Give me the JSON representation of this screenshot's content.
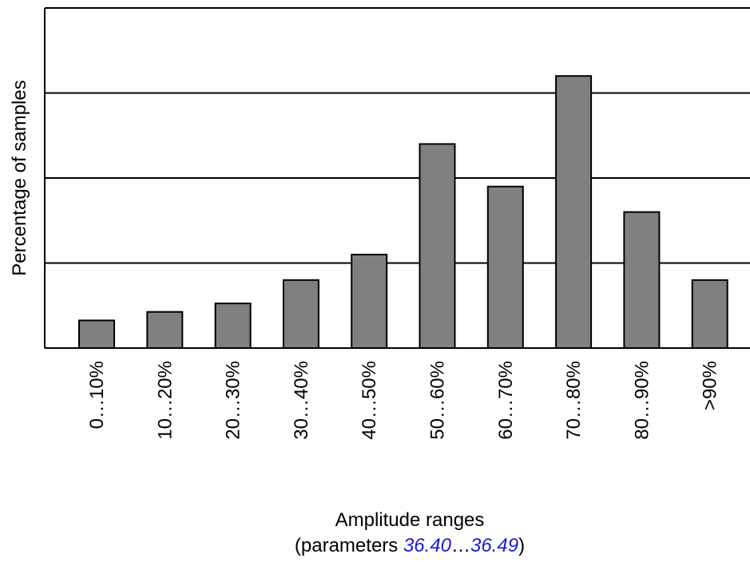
{
  "chart_data": {
    "type": "bar",
    "title": "",
    "categories": [
      "0…10%",
      "10…20%",
      "20…30%",
      "30…40%",
      "40…50%",
      "50…60%",
      "60…70%",
      "70…80%",
      "80…90%",
      ">90%"
    ],
    "values": [
      6.5,
      8.5,
      10.5,
      16,
      22,
      48,
      38,
      64,
      32,
      16
    ],
    "ylabel": "Percentage of samples",
    "xlabel": {
      "line1": "Amplitude ranges",
      "prefix": "(parameters ",
      "param_start": "36.40",
      "separator": "…",
      "param_end": "36.49",
      "suffix": ")"
    },
    "ylim": [
      0,
      80
    ],
    "gridlines": [
      20,
      40,
      60
    ],
    "y_tick_labels": false,
    "grid": true,
    "legend": "none",
    "colors": {
      "bar_fill": "#808080",
      "bar_stroke": "#000000",
      "link": "#1a1ad6",
      "grid": "#000000"
    }
  }
}
